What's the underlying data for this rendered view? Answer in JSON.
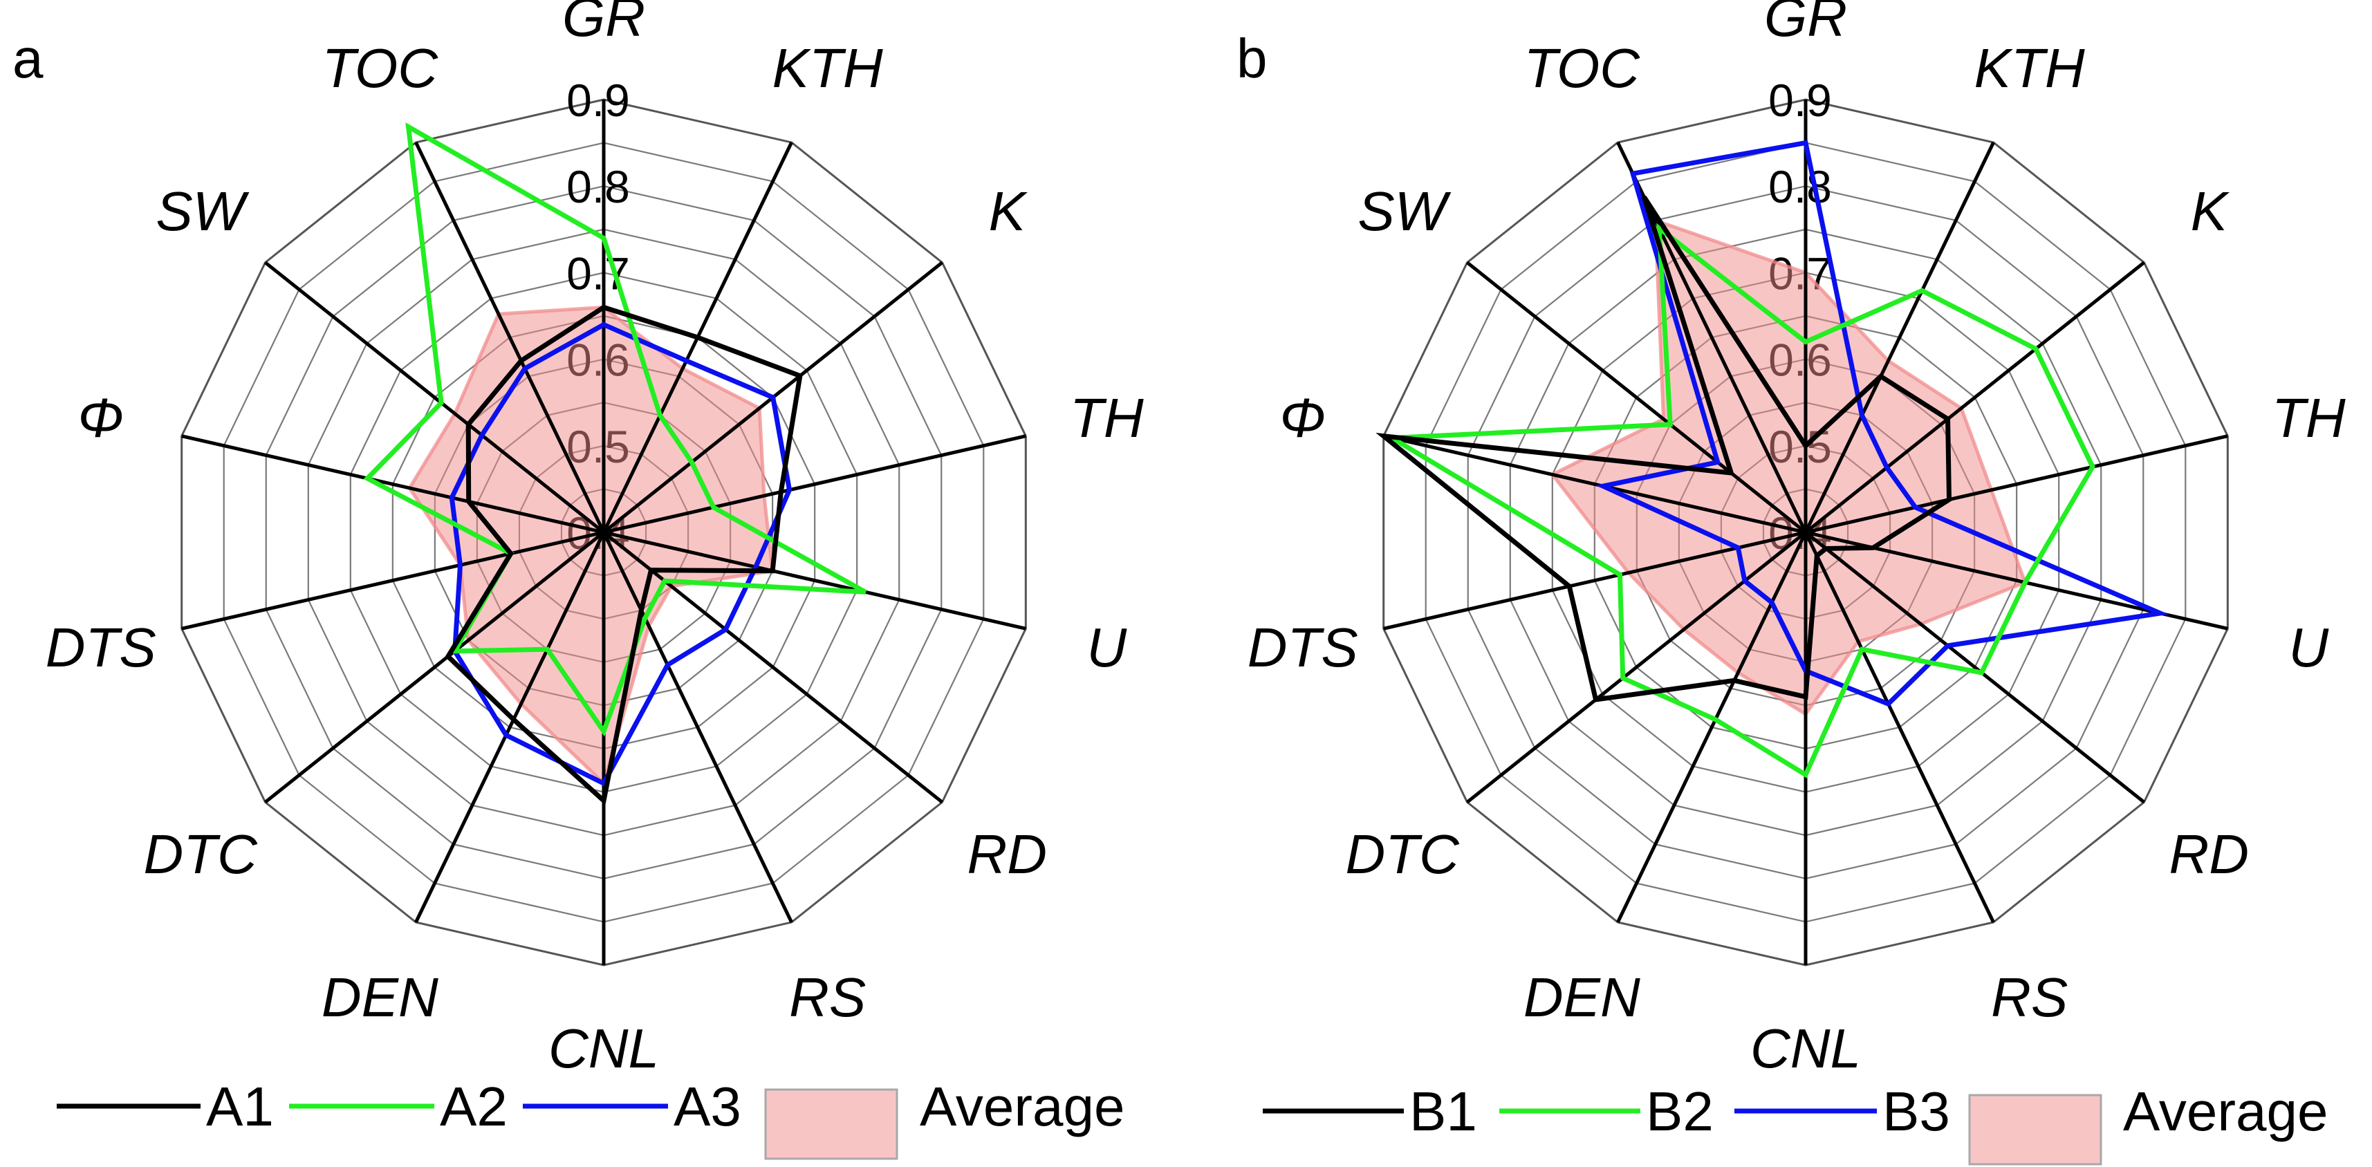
{
  "figure": {
    "panels": [
      "a",
      "b"
    ]
  },
  "chart_data": [
    {
      "type": "radar",
      "panel": "a",
      "axes": [
        "GR",
        "KTH",
        "K",
        "TH",
        "U",
        "RD",
        "RS",
        "CNL",
        "DEN",
        "DTC",
        "DTS",
        "Φ",
        "SW",
        "TOC"
      ],
      "range": [
        0.4,
        0.9
      ],
      "ticks": [
        "0.4",
        "0.5",
        "0.6",
        "0.7",
        "0.8",
        "0.9"
      ],
      "series": [
        {
          "name": "A1",
          "color": "#000000",
          "values": [
            0.66,
            0.65,
            0.69,
            0.61,
            0.6,
            0.47,
            0.5,
            0.71,
            0.64,
            0.63,
            0.51,
            0.56,
            0.6,
            0.62
          ]
        },
        {
          "name": "A2",
          "color": "#22ee22",
          "values": [
            0.74,
            0.55,
            0.53,
            0.53,
            0.71,
            0.49,
            0.51,
            0.63,
            0.55,
            0.62,
            0.51,
            0.68,
            0.64,
            0.92
          ]
        },
        {
          "name": "A3",
          "color": "#0a10ee",
          "values": [
            0.64,
            0.62,
            0.65,
            0.62,
            0.58,
            0.58,
            0.57,
            0.69,
            0.66,
            0.62,
            0.57,
            0.58,
            0.58,
            0.61
          ]
        },
        {
          "name": "Average",
          "color": "#f28b8b",
          "fill": true,
          "values": [
            0.66,
            0.61,
            0.63,
            0.59,
            0.6,
            0.5,
            0.52,
            0.69,
            0.62,
            0.6,
            0.57,
            0.63,
            0.62,
            0.68
          ]
        }
      ],
      "legend": [
        "A1",
        "A2",
        "A3",
        "Average"
      ]
    },
    {
      "type": "radar",
      "panel": "b",
      "axes": [
        "GR",
        "KTH",
        "K",
        "TH",
        "U",
        "RD",
        "RS",
        "CNL",
        "DEN",
        "DTC",
        "DTS",
        "Φ",
        "SW",
        "TOC"
      ],
      "range": [
        0.4,
        0.9
      ],
      "ticks": [
        "0.4",
        "0.5",
        "0.6",
        "0.7",
        "0.8",
        "0.9"
      ],
      "series": [
        {
          "name": "B1",
          "color": "#000000",
          "values": [
            0.5,
            0.6,
            0.61,
            0.57,
            0.48,
            0.43,
            0.43,
            0.59,
            0.59,
            0.71,
            0.68,
            0.9,
            0.51,
            0.83
          ]
        },
        {
          "name": "B2",
          "color": "#22ee22",
          "values": [
            0.62,
            0.71,
            0.74,
            0.74,
            0.66,
            0.66,
            0.55,
            0.68,
            0.64,
            0.67,
            0.62,
            0.89,
            0.6,
            0.79
          ]
        },
        {
          "name": "B3",
          "color": "#0a10ee",
          "values": [
            0.85,
            0.55,
            0.52,
            0.53,
            0.82,
            0.61,
            0.62,
            0.56,
            0.49,
            0.49,
            0.48,
            0.64,
            0.53,
            0.86
          ]
        },
        {
          "name": "Average",
          "color": "#f28b8b",
          "fill": true,
          "values": [
            0.7,
            0.62,
            0.63,
            0.62,
            0.66,
            0.57,
            0.54,
            0.61,
            0.58,
            0.58,
            0.61,
            0.7,
            0.61,
            0.8
          ]
        }
      ],
      "legend": [
        "B1",
        "B2",
        "B3",
        "Average"
      ]
    }
  ]
}
